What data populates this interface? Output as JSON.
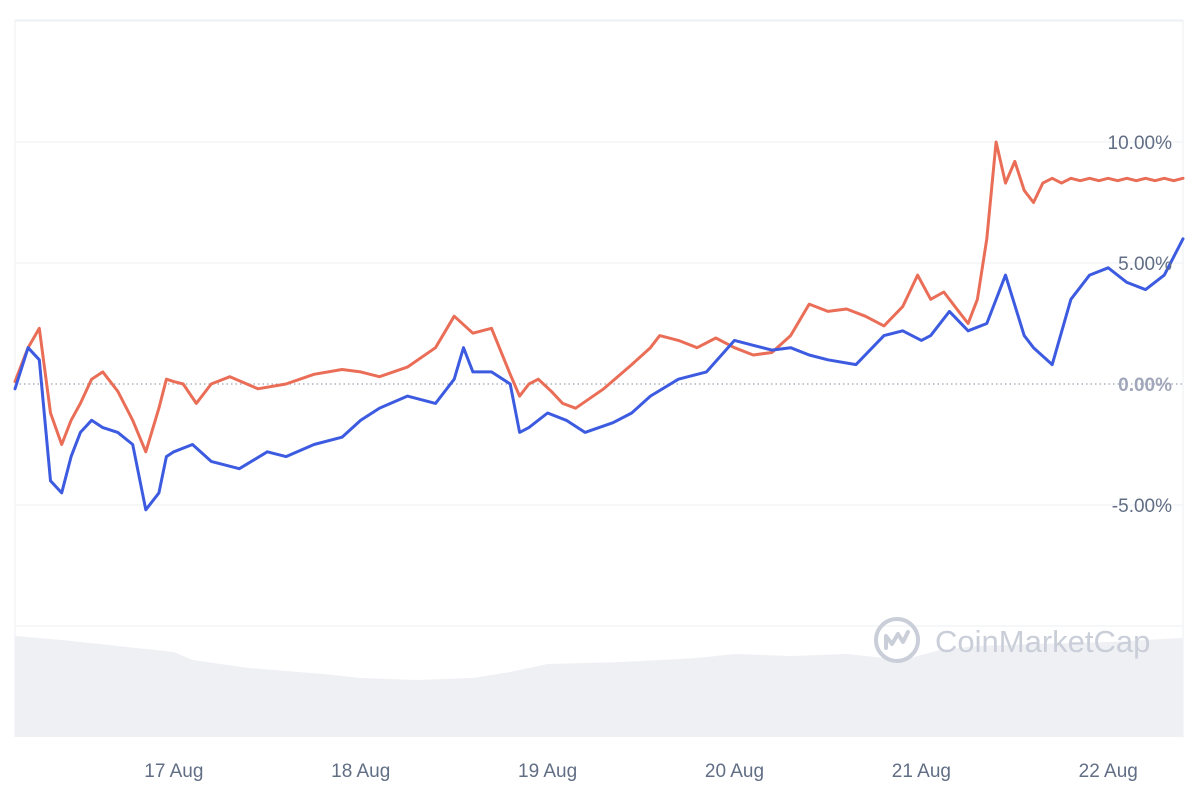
{
  "chart_data": {
    "type": "line",
    "title": "",
    "xlabel": "",
    "ylabel": "",
    "x_tick_labels": [
      "17 Aug",
      "18 Aug",
      "19 Aug",
      "20 Aug",
      "21 Aug",
      "22 Aug"
    ],
    "y_tick_labels": [
      "10.00%",
      "5.00%",
      "0.00%",
      "-5.00%"
    ],
    "y_tick_values": [
      10,
      5,
      0,
      -5
    ],
    "ylim": [
      -10,
      15
    ],
    "x_range_days": [
      -0.85,
      5.4
    ],
    "grid": true,
    "baseline": 0,
    "colors": {
      "series_red": "#ea6e57",
      "series_blue": "#3c5be0",
      "grid": "#eceff3",
      "volume": "#eef0f4",
      "watermark": "#c9ced8",
      "tick_text": "#616e85",
      "zero_label": "#a1a7bb"
    },
    "series": [
      {
        "color": "#ea6e57",
        "x": [
          -0.85,
          -0.78,
          -0.72,
          -0.66,
          -0.6,
          -0.55,
          -0.5,
          -0.44,
          -0.38,
          -0.3,
          -0.22,
          -0.15,
          -0.08,
          -0.04,
          0,
          0.05,
          0.12,
          0.2,
          0.3,
          0.45,
          0.6,
          0.75,
          0.9,
          1.0,
          1.1,
          1.25,
          1.4,
          1.5,
          1.6,
          1.7,
          1.8,
          1.85,
          1.9,
          1.95,
          2.02,
          2.08,
          2.15,
          2.3,
          2.45,
          2.55,
          2.6,
          2.7,
          2.8,
          2.9,
          3.0,
          3.1,
          3.2,
          3.3,
          3.4,
          3.5,
          3.6,
          3.7,
          3.8,
          3.9,
          3.98,
          4.05,
          4.12,
          4.2,
          4.25,
          4.3,
          4.35,
          4.4,
          4.45,
          4.5,
          4.55,
          4.6,
          4.65,
          4.7,
          4.75,
          4.8,
          4.85,
          4.9,
          4.95,
          5.0,
          5.05,
          5.1,
          5.15,
          5.2,
          5.25,
          5.3,
          5.35,
          5.4
        ],
        "values": [
          0.1,
          1.5,
          2.3,
          -1.2,
          -2.5,
          -1.5,
          -0.8,
          0.2,
          0.5,
          -0.3,
          -1.5,
          -2.8,
          -1.0,
          0.2,
          0.1,
          0.0,
          -0.8,
          0.0,
          0.3,
          -0.2,
          0.0,
          0.4,
          0.6,
          0.5,
          0.3,
          0.7,
          1.5,
          2.8,
          2.1,
          2.3,
          0.4,
          -0.5,
          0.0,
          0.2,
          -0.3,
          -0.8,
          -1.0,
          -0.2,
          0.8,
          1.5,
          2.0,
          1.8,
          1.5,
          1.9,
          1.5,
          1.2,
          1.3,
          2.0,
          3.3,
          3.0,
          3.1,
          2.8,
          2.4,
          3.2,
          4.5,
          3.5,
          3.8,
          3.0,
          2.5,
          3.5,
          6.0,
          10.0,
          8.3,
          9.2,
          8.0,
          7.5,
          8.3,
          8.5,
          8.3,
          8.5,
          8.4,
          8.5,
          8.4,
          8.5,
          8.4,
          8.5,
          8.4,
          8.5,
          8.4,
          8.5,
          8.4,
          8.5
        ],
        "x_note": "days relative to 17 Aug midnight"
      },
      {
        "color": "#3c5be0",
        "x": [
          -0.85,
          -0.78,
          -0.72,
          -0.66,
          -0.6,
          -0.55,
          -0.5,
          -0.44,
          -0.38,
          -0.3,
          -0.22,
          -0.15,
          -0.08,
          -0.04,
          0,
          0.1,
          0.2,
          0.35,
          0.5,
          0.6,
          0.75,
          0.9,
          1.0,
          1.1,
          1.25,
          1.4,
          1.5,
          1.55,
          1.6,
          1.7,
          1.8,
          1.85,
          1.9,
          2.0,
          2.1,
          2.2,
          2.35,
          2.45,
          2.55,
          2.7,
          2.85,
          3.0,
          3.1,
          3.2,
          3.3,
          3.4,
          3.5,
          3.65,
          3.8,
          3.9,
          4.0,
          4.05,
          4.15,
          4.25,
          4.35,
          4.45,
          4.55,
          4.6,
          4.7,
          4.8,
          4.9,
          5.0,
          5.1,
          5.2,
          5.3,
          5.4
        ],
        "values": [
          -0.2,
          1.5,
          1.0,
          -4.0,
          -4.5,
          -3.0,
          -2.0,
          -1.5,
          -1.8,
          -2.0,
          -2.5,
          -5.2,
          -4.5,
          -3.0,
          -2.8,
          -2.5,
          -3.2,
          -3.5,
          -2.8,
          -3.0,
          -2.5,
          -2.2,
          -1.5,
          -1.0,
          -0.5,
          -0.8,
          0.2,
          1.5,
          0.5,
          0.5,
          0.0,
          -2.0,
          -1.8,
          -1.2,
          -1.5,
          -2.0,
          -1.6,
          -1.2,
          -0.5,
          0.2,
          0.5,
          1.8,
          1.6,
          1.4,
          1.5,
          1.2,
          1.0,
          0.8,
          2.0,
          2.2,
          1.8,
          2.0,
          3.0,
          2.2,
          2.5,
          4.5,
          2.0,
          1.5,
          0.8,
          3.5,
          4.5,
          4.8,
          4.2,
          3.9,
          4.5,
          6.0
        ],
        "x_note": "days relative to 17 Aug midnight"
      }
    ],
    "volume_note": "light grey volume area in lower band"
  },
  "watermark": {
    "text": "CoinMarketCap",
    "icon": "coinmarketcap-logo-icon"
  }
}
